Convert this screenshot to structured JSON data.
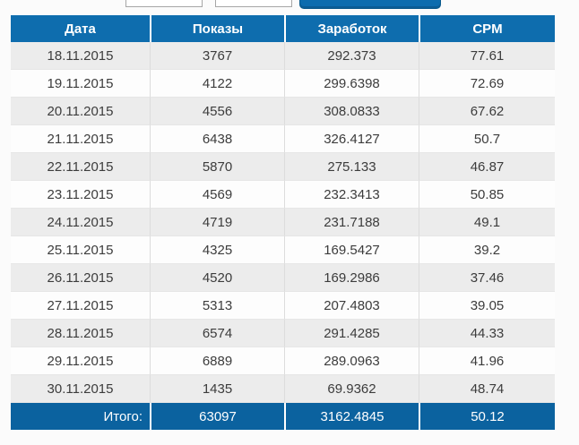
{
  "top_controls": {
    "date_from_value": "",
    "date_to_value": "",
    "submit_button_label": ""
  },
  "table": {
    "headers": [
      "Дата",
      "Показы",
      "Заработок",
      "CPM"
    ],
    "rows": [
      [
        "18.11.2015",
        "3767",
        "292.373",
        "77.61"
      ],
      [
        "19.11.2015",
        "4122",
        "299.6398",
        "72.69"
      ],
      [
        "20.11.2015",
        "4556",
        "308.0833",
        "67.62"
      ],
      [
        "21.11.2015",
        "6438",
        "326.4127",
        "50.7"
      ],
      [
        "22.11.2015",
        "5870",
        "275.133",
        "46.87"
      ],
      [
        "23.11.2015",
        "4569",
        "232.3413",
        "50.85"
      ],
      [
        "24.11.2015",
        "4719",
        "231.7188",
        "49.1"
      ],
      [
        "25.11.2015",
        "4325",
        "169.5427",
        "39.2"
      ],
      [
        "26.11.2015",
        "4520",
        "169.2986",
        "37.46"
      ],
      [
        "27.11.2015",
        "5313",
        "207.4803",
        "39.05"
      ],
      [
        "28.11.2015",
        "6574",
        "291.4285",
        "44.33"
      ],
      [
        "29.11.2015",
        "6889",
        "289.0963",
        "41.96"
      ],
      [
        "30.11.2015",
        "1435",
        "69.9362",
        "48.74"
      ]
    ],
    "footer": {
      "label": "Итого:",
      "values": [
        "63097",
        "3162.4845",
        "50.12"
      ]
    },
    "colors": {
      "header_blue": "#0e6dae",
      "footer_blue": "#0b629f",
      "button_blue": "#0d6cae",
      "row_gray": "#ececec",
      "row_white": "#fdfdfd",
      "text": "#3c3c3c"
    }
  }
}
